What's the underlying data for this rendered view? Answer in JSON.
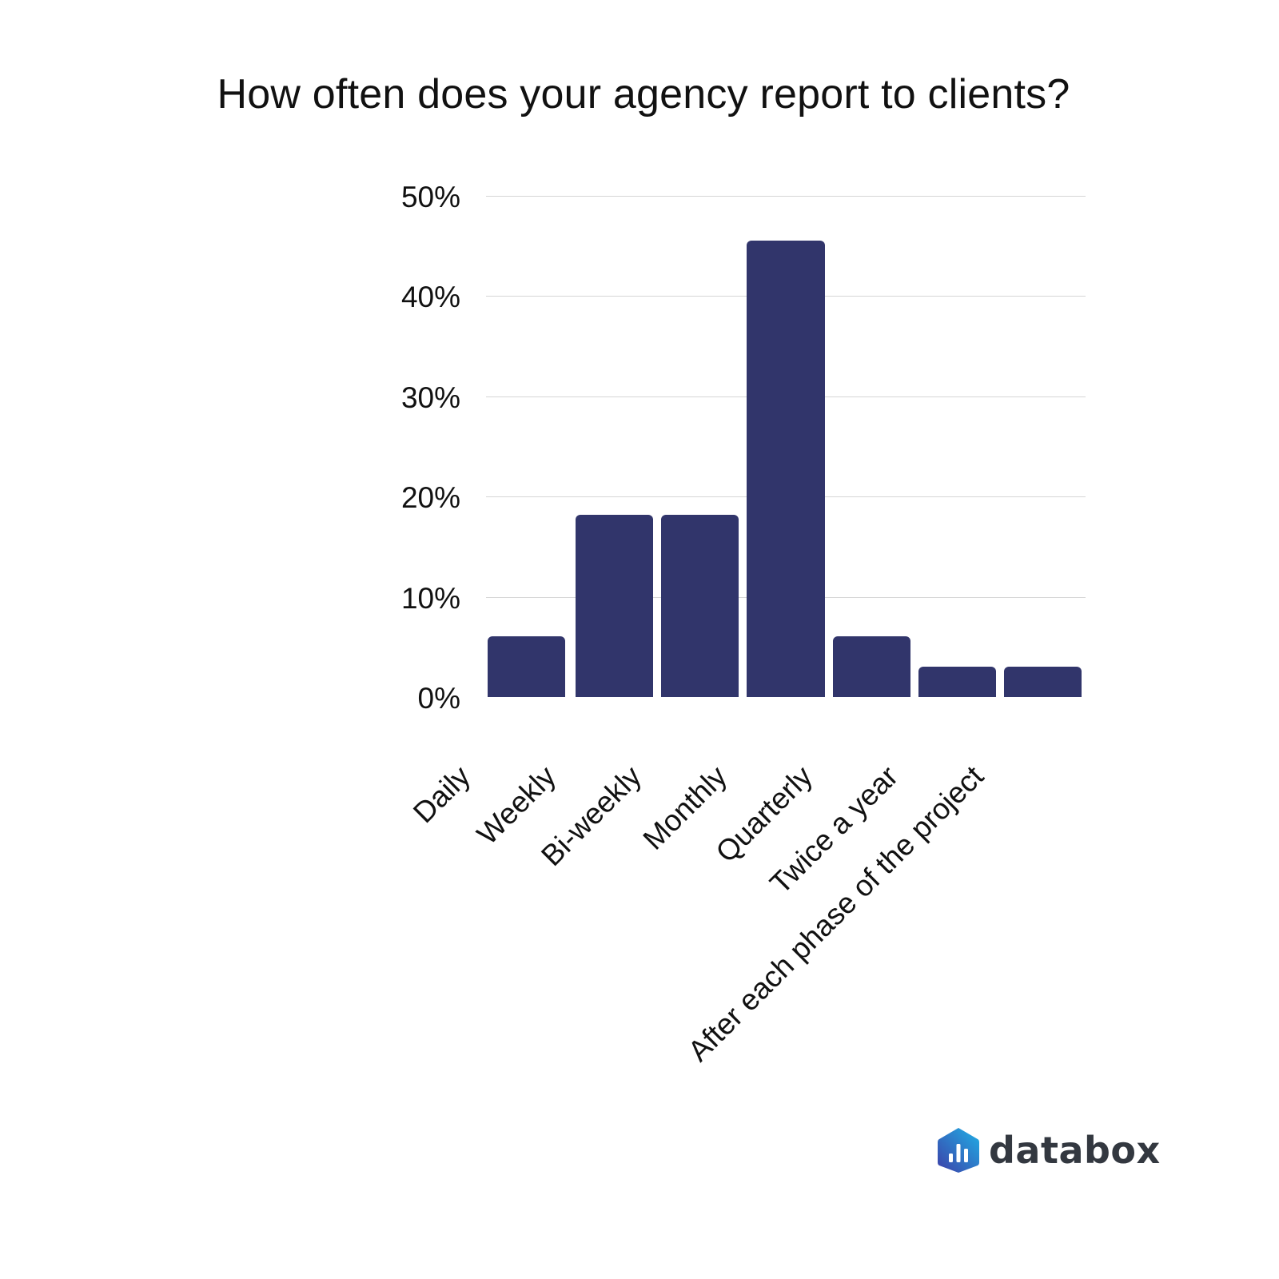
{
  "chart_data": {
    "type": "bar",
    "title": "How often does your agency report to clients?",
    "xlabel": "",
    "ylabel": "",
    "categories": [
      "Daily",
      "Weekly",
      "Bi-weekly",
      "Monthly",
      "Quarterly",
      "Twice a year",
      "After each phase of the project"
    ],
    "values": [
      6.1,
      18.2,
      18.2,
      45.5,
      6.1,
      3.0,
      3.0
    ],
    "ylim": [
      0,
      50
    ],
    "yticks": [
      "0%",
      "10%",
      "20%",
      "30%",
      "40%",
      "50%"
    ],
    "grid": true,
    "legend": null,
    "bar_color": "#31356b"
  },
  "branding": {
    "logo_text": "databox"
  }
}
